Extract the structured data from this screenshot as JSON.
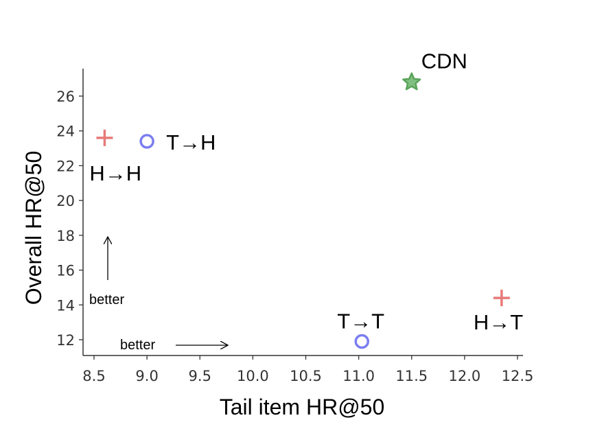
{
  "chart_data": {
    "type": "scatter",
    "title": "",
    "xlabel": "Tail item HR@50",
    "ylabel": "Overall HR@50",
    "xlim": [
      8.5,
      12.5
    ],
    "ylim": [
      11,
      27.5
    ],
    "x_ticks": [
      "8.5",
      "9.0",
      "9.5",
      "10.0",
      "10.5",
      "11.0",
      "11.5",
      "12.0",
      "12.5"
    ],
    "y_ticks": [
      "12",
      "14",
      "16",
      "18",
      "20",
      "22",
      "24",
      "26"
    ],
    "grid": false,
    "points": [
      {
        "label": "H→H",
        "x": 8.6,
        "y": 23.6,
        "marker": "plus",
        "color": "#e87a7a"
      },
      {
        "label": "T→H",
        "x": 9.0,
        "y": 23.4,
        "marker": "circle",
        "color": "#7b7ef0"
      },
      {
        "label": "CDN",
        "x": 11.5,
        "y": 26.8,
        "marker": "star",
        "color": "#5aa35a"
      },
      {
        "label": "T→T",
        "x": 11.03,
        "y": 11.9,
        "marker": "circle",
        "color": "#7b7ef0"
      },
      {
        "label": "H→T",
        "x": 12.35,
        "y": 14.4,
        "marker": "plus",
        "color": "#e87a7a"
      }
    ],
    "annotations": {
      "vertical_note": "better",
      "horizontal_note": "better"
    }
  }
}
